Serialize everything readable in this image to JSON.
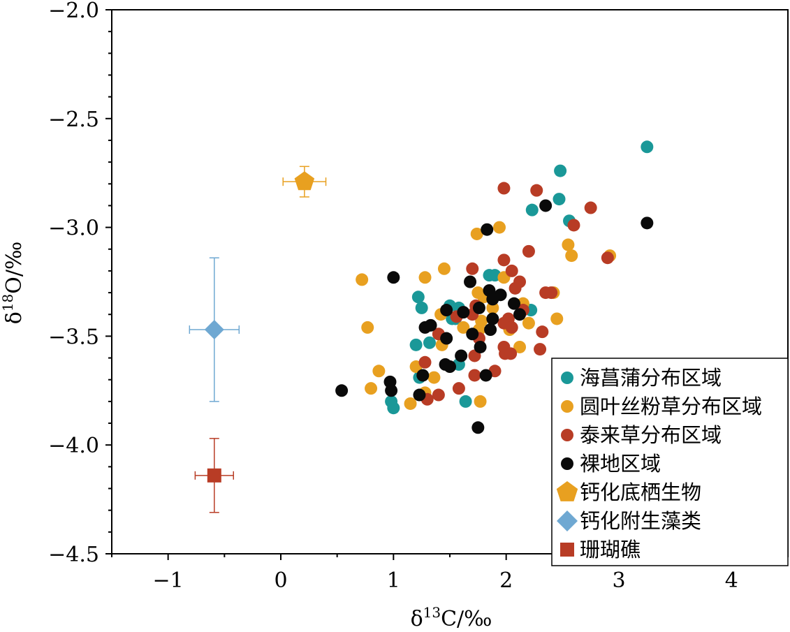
{
  "chart_data": {
    "type": "scatter",
    "xlabel": {
      "base": "δ",
      "sup": "13",
      "rest": "C/‰"
    },
    "ylabel": {
      "base": "δ",
      "sup": "18",
      "rest": "O/‰"
    },
    "xlim": [
      -1.5,
      4.5
    ],
    "ylim": [
      -4.5,
      -2.0
    ],
    "x_ticks": [
      -1,
      0,
      1,
      2,
      3,
      4
    ],
    "x_tick_labels": [
      "−1",
      "0",
      "1",
      "2",
      "3",
      "4"
    ],
    "y_ticks": [
      -2.0,
      -2.5,
      -3.0,
      -3.5,
      -4.0,
      -4.5
    ],
    "y_tick_labels": [
      "−2.0",
      "−2.5",
      "−3.0",
      "−3.5",
      "−4.0",
      "−4.5"
    ],
    "grid": false,
    "legend_position": "bottom-right",
    "series": [
      {
        "name": "海菖蒲分布区域",
        "marker": "circle",
        "color": "#1a9898",
        "points": [
          [
            3.25,
            -2.63
          ],
          [
            2.48,
            -2.74
          ],
          [
            2.47,
            -2.87
          ],
          [
            2.23,
            -2.92
          ],
          [
            2.56,
            -2.97
          ],
          [
            1.85,
            -3.22
          ],
          [
            1.9,
            -3.22
          ],
          [
            1.22,
            -3.32
          ],
          [
            1.25,
            -3.37
          ],
          [
            1.5,
            -3.36
          ],
          [
            1.58,
            -3.37
          ],
          [
            1.52,
            -3.42
          ],
          [
            1.2,
            -3.54
          ],
          [
            1.32,
            -3.53
          ],
          [
            1.58,
            -3.63
          ],
          [
            1.23,
            -3.69
          ],
          [
            0.98,
            -3.8
          ],
          [
            1.0,
            -3.83
          ],
          [
            1.64,
            -3.8
          ],
          [
            2.22,
            -3.38
          ],
          [
            1.55,
            -3.42
          ]
        ]
      },
      {
        "name": "圆叶丝粉草分布区域",
        "marker": "circle",
        "color": "#e8a020",
        "points": [
          [
            0.72,
            -3.24
          ],
          [
            1.28,
            -3.23
          ],
          [
            1.45,
            -3.19
          ],
          [
            1.74,
            -3.03
          ],
          [
            1.94,
            -3.0
          ],
          [
            2.55,
            -3.08
          ],
          [
            2.58,
            -3.13
          ],
          [
            2.92,
            -3.13
          ],
          [
            1.98,
            -3.23
          ],
          [
            1.75,
            -3.3
          ],
          [
            1.8,
            -3.32
          ],
          [
            1.88,
            -3.37
          ],
          [
            2.15,
            -3.35
          ],
          [
            2.42,
            -3.3
          ],
          [
            2.45,
            -3.42
          ],
          [
            2.2,
            -3.44
          ],
          [
            2.03,
            -3.47
          ],
          [
            1.42,
            -3.4
          ],
          [
            1.62,
            -3.46
          ],
          [
            1.78,
            -3.43
          ],
          [
            1.43,
            -3.54
          ],
          [
            0.77,
            -3.46
          ],
          [
            0.87,
            -3.66
          ],
          [
            0.8,
            -3.74
          ],
          [
            1.2,
            -3.64
          ],
          [
            1.36,
            -3.69
          ],
          [
            1.28,
            -3.76
          ],
          [
            1.15,
            -3.81
          ],
          [
            1.77,
            -3.8
          ],
          [
            1.76,
            -3.47
          ],
          [
            2.12,
            -3.55
          ]
        ]
      },
      {
        "name": "泰来草分布区域",
        "marker": "circle",
        "color": "#b83c25",
        "points": [
          [
            1.98,
            -2.82
          ],
          [
            2.27,
            -2.83
          ],
          [
            2.75,
            -2.91
          ],
          [
            2.6,
            -2.99
          ],
          [
            2.2,
            -3.11
          ],
          [
            1.98,
            -3.15
          ],
          [
            2.9,
            -3.14
          ],
          [
            1.7,
            -3.19
          ],
          [
            2.05,
            -3.2
          ],
          [
            2.12,
            -3.25
          ],
          [
            2.08,
            -3.28
          ],
          [
            2.35,
            -3.3
          ],
          [
            2.4,
            -3.3
          ],
          [
            1.73,
            -3.36
          ],
          [
            2.15,
            -3.38
          ],
          [
            1.56,
            -3.41
          ],
          [
            1.7,
            -3.4
          ],
          [
            2.02,
            -3.42
          ],
          [
            1.98,
            -3.44
          ],
          [
            2.05,
            -3.46
          ],
          [
            1.4,
            -3.49
          ],
          [
            1.76,
            -3.51
          ],
          [
            2.32,
            -3.48
          ],
          [
            1.98,
            -3.55
          ],
          [
            1.99,
            -3.58
          ],
          [
            2.04,
            -3.58
          ],
          [
            2.3,
            -3.56
          ],
          [
            1.28,
            -3.62
          ],
          [
            1.72,
            -3.59
          ],
          [
            1.9,
            -3.66
          ],
          [
            1.72,
            -3.68
          ],
          [
            1.58,
            -3.74
          ],
          [
            1.4,
            -3.77
          ],
          [
            1.3,
            -3.79
          ]
        ]
      },
      {
        "name": "裸地区域",
        "marker": "circle",
        "color": "#0a0a0a",
        "points": [
          [
            2.35,
            -2.9
          ],
          [
            3.25,
            -2.98
          ],
          [
            1.83,
            -3.01
          ],
          [
            1.0,
            -3.23
          ],
          [
            1.68,
            -3.25
          ],
          [
            1.85,
            -3.29
          ],
          [
            1.95,
            -3.31
          ],
          [
            1.88,
            -3.33
          ],
          [
            1.76,
            -3.37
          ],
          [
            2.07,
            -3.35
          ],
          [
            1.47,
            -3.38
          ],
          [
            1.62,
            -3.39
          ],
          [
            1.88,
            -3.42
          ],
          [
            2.12,
            -3.4
          ],
          [
            1.33,
            -3.45
          ],
          [
            1.28,
            -3.46
          ],
          [
            1.86,
            -3.47
          ],
          [
            1.7,
            -3.49
          ],
          [
            1.47,
            -3.51
          ],
          [
            1.77,
            -3.55
          ],
          [
            1.6,
            -3.59
          ],
          [
            1.46,
            -3.63
          ],
          [
            1.5,
            -3.64
          ],
          [
            1.26,
            -3.68
          ],
          [
            1.82,
            -3.68
          ],
          [
            0.97,
            -3.71
          ],
          [
            0.98,
            -3.75
          ],
          [
            0.54,
            -3.75
          ],
          [
            1.23,
            -3.77
          ],
          [
            1.75,
            -3.92
          ]
        ]
      },
      {
        "name": "钙化底栖生物",
        "marker": "pentagon",
        "color": "#e8a020",
        "points": [
          [
            0.21,
            -2.79
          ]
        ],
        "xerr": 0.19,
        "yerr": 0.07
      },
      {
        "name": "钙化附生藻类",
        "marker": "diamond",
        "color": "#6fa8d2",
        "points": [
          [
            -0.59,
            -3.47
          ]
        ],
        "xerr": 0.22,
        "yerr": 0.33
      },
      {
        "name": "珊瑚礁",
        "marker": "square",
        "color": "#b83c25",
        "points": [
          [
            -0.59,
            -4.14
          ]
        ],
        "xerr": 0.17,
        "yerr": 0.17
      }
    ]
  }
}
